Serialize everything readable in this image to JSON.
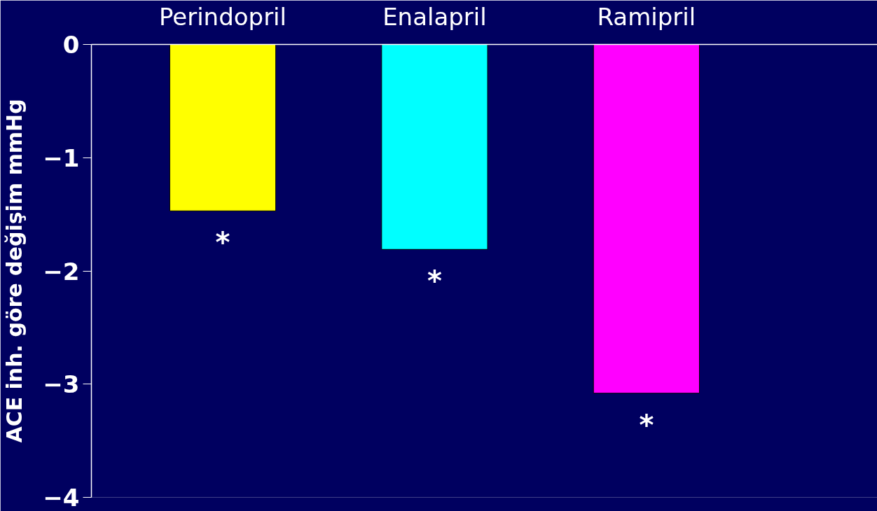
{
  "chart_data": {
    "type": "bar",
    "ylabel": "ACE inh. göre değişim mmHg",
    "categories": [
      "Perindopril",
      "Enalapril",
      "Ramipril"
    ],
    "values": [
      -1.47,
      -1.81,
      -3.08
    ],
    "colors": [
      "#ffff00",
      "#00ffff",
      "#ff00ff"
    ],
    "ylim": [
      -4,
      0
    ],
    "yticks": [
      0,
      -1,
      -2,
      -3,
      -4
    ],
    "grid": false,
    "annotations": [
      "*",
      "*",
      "*"
    ]
  }
}
